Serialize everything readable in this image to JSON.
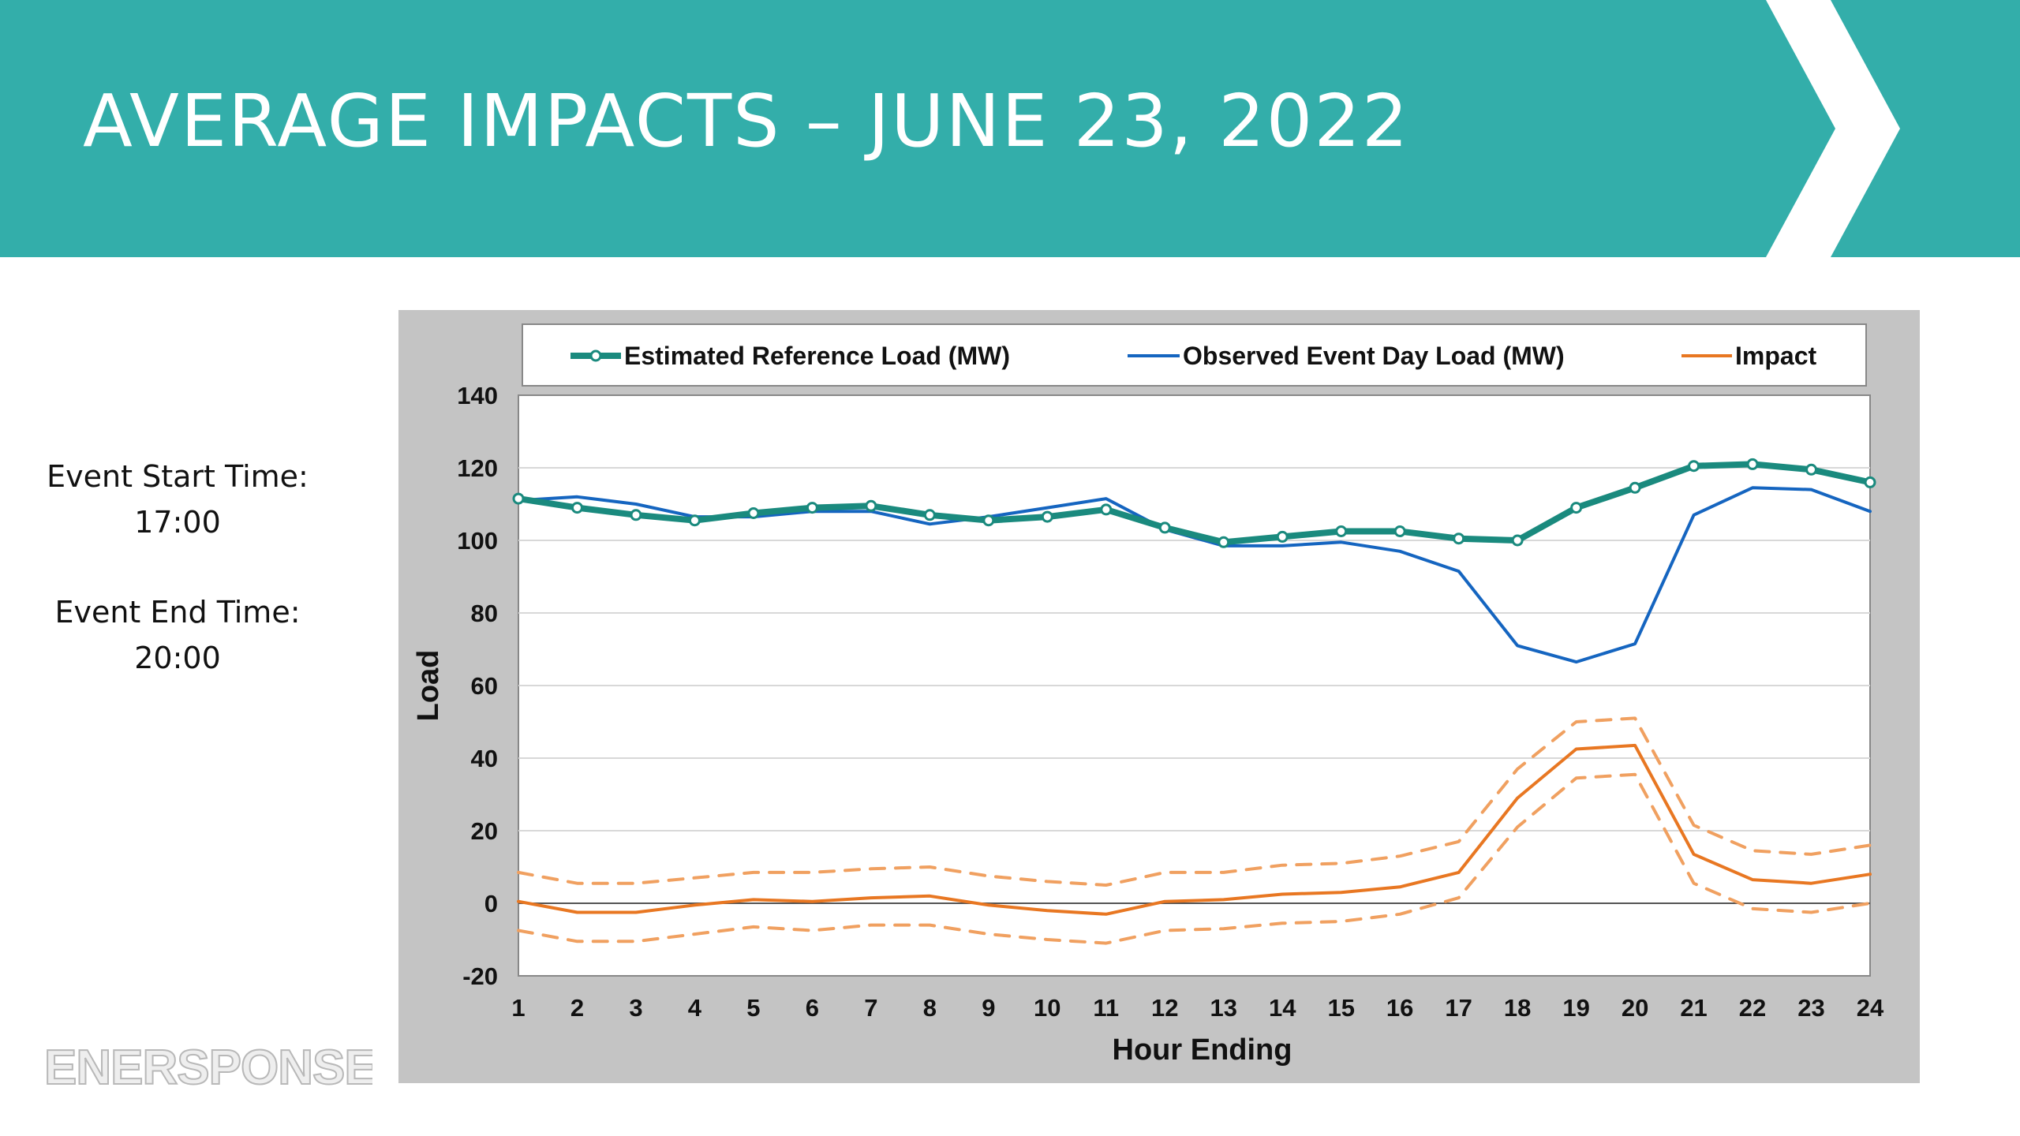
{
  "slide": {
    "title": "AVERAGE IMPACTS – JUNE 23, 2022",
    "banner_color": "#33AEAA",
    "event_start_label": "Event Start Time:",
    "event_start_value": "17:00",
    "event_end_label": "Event End Time:",
    "event_end_value": "20:00",
    "logo_text": "ENERSPONSE"
  },
  "chart_data": {
    "type": "line",
    "title": "",
    "xlabel": "Hour Ending",
    "ylabel": "Load",
    "ylim": [
      -20,
      140
    ],
    "yticks": [
      -20,
      0,
      20,
      40,
      60,
      80,
      100,
      120,
      140
    ],
    "categories": [
      "1",
      "2",
      "3",
      "4",
      "5",
      "6",
      "7",
      "8",
      "9",
      "10",
      "11",
      "12",
      "13",
      "14",
      "15",
      "16",
      "17",
      "18",
      "19",
      "20",
      "21",
      "22",
      "23",
      "24"
    ],
    "grid": true,
    "legend_position": "top",
    "series": [
      {
        "name": "Estimated Reference Load (MW)",
        "color": "#1A8A7E",
        "style": "solid-markers",
        "values": [
          111.5,
          109,
          107,
          105.5,
          107.5,
          109,
          109.5,
          107,
          105.5,
          106.5,
          108.5,
          103.5,
          99.5,
          101,
          102.5,
          102.5,
          100.5,
          100,
          109,
          114.5,
          120.5,
          121,
          119.5,
          116
        ]
      },
      {
        "name": "Observed Event Day Load (MW)",
        "color": "#1565C0",
        "style": "solid",
        "values": [
          111,
          112,
          110,
          106.5,
          106.5,
          108,
          108,
          104.5,
          106.5,
          109,
          111.5,
          103,
          98.5,
          98.5,
          99.5,
          97,
          91.5,
          71,
          66.5,
          71.5,
          107,
          114.5,
          114,
          108
        ]
      },
      {
        "name": "Impact",
        "color": "#E87722",
        "style": "solid",
        "values": [
          0.5,
          -2.5,
          -2.5,
          -0.5,
          1,
          0.5,
          1.5,
          2,
          -0.5,
          -2,
          -3,
          0.5,
          1,
          2.5,
          3,
          4.5,
          8.5,
          29,
          42.5,
          43.5,
          13.5,
          6.5,
          5.5,
          8
        ]
      },
      {
        "color": "#F0A060",
        "style": "dashed",
        "values": [
          8.5,
          5.5,
          5.5,
          7,
          8.5,
          8.5,
          9.5,
          10,
          7.5,
          6,
          5,
          8.5,
          8.5,
          10.5,
          11,
          13,
          17,
          37,
          50,
          51,
          21.5,
          14.5,
          13.5,
          16
        ]
      },
      {
        "color": "#F0A060",
        "style": "dashed",
        "values": [
          -7.5,
          -10.5,
          -10.5,
          -8.5,
          -6.5,
          -7.5,
          -6,
          -6,
          -8.5,
          -10,
          -11,
          -7.5,
          -7,
          -5.5,
          -5,
          -3,
          1.5,
          21,
          34.5,
          35.5,
          5.5,
          -1.5,
          -2.5,
          0
        ]
      }
    ]
  }
}
